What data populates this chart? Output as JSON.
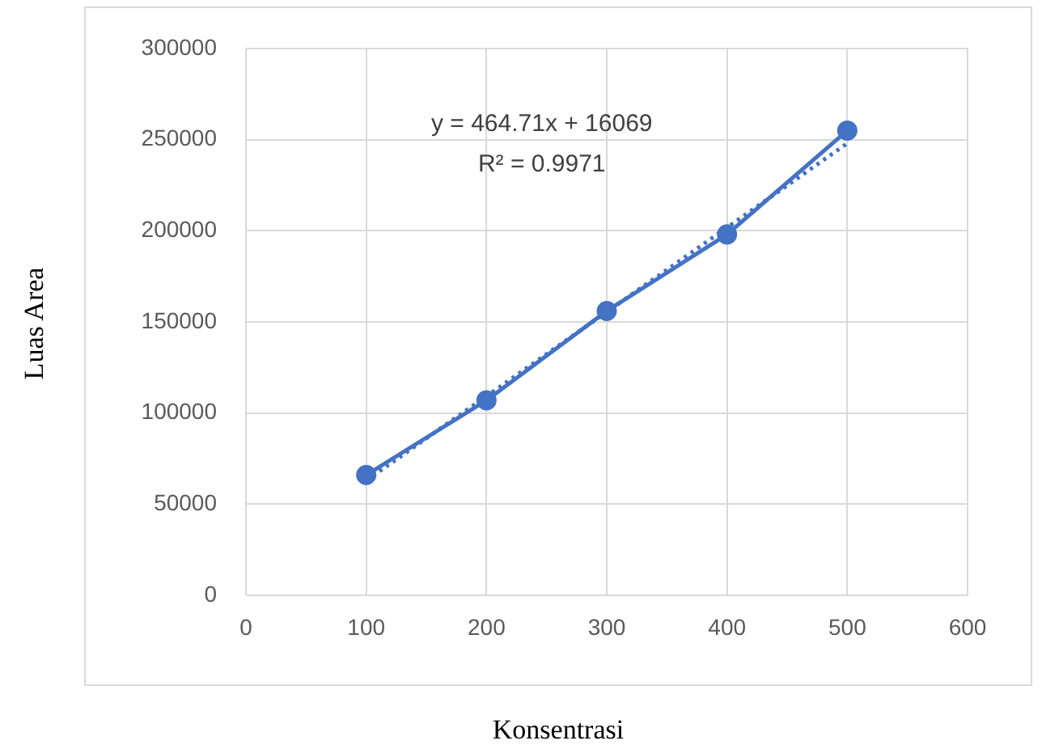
{
  "chart_data": {
    "type": "line",
    "xlabel": "Konsentrasi",
    "ylabel": "Luas Area",
    "x": [
      100,
      200,
      300,
      400,
      500
    ],
    "series": [
      {
        "color": "#4472c4",
        "values": [
          66000,
          107000,
          156000,
          198000,
          255000
        ]
      },
      {
        "type": "line",
        "x": [
          100,
          500
        ],
        "values": [
          63000,
          248000
        ],
        "color": "#4472c4",
        "line_style": "dotted",
        "marker": "none"
      }
    ],
    "xlim": [
      0,
      600
    ],
    "xticks": [
      0,
      100,
      200,
      300,
      400,
      500,
      600
    ],
    "ylim": [
      0,
      300000
    ],
    "yticks": [
      0,
      50000,
      100000,
      150000,
      200000,
      250000,
      300000
    ],
    "grid": true,
    "legend": false,
    "marker": "circle",
    "line_style": "solid",
    "annotations": [
      "y = 464.71x + 16069",
      "R² = 0.9971"
    ]
  }
}
